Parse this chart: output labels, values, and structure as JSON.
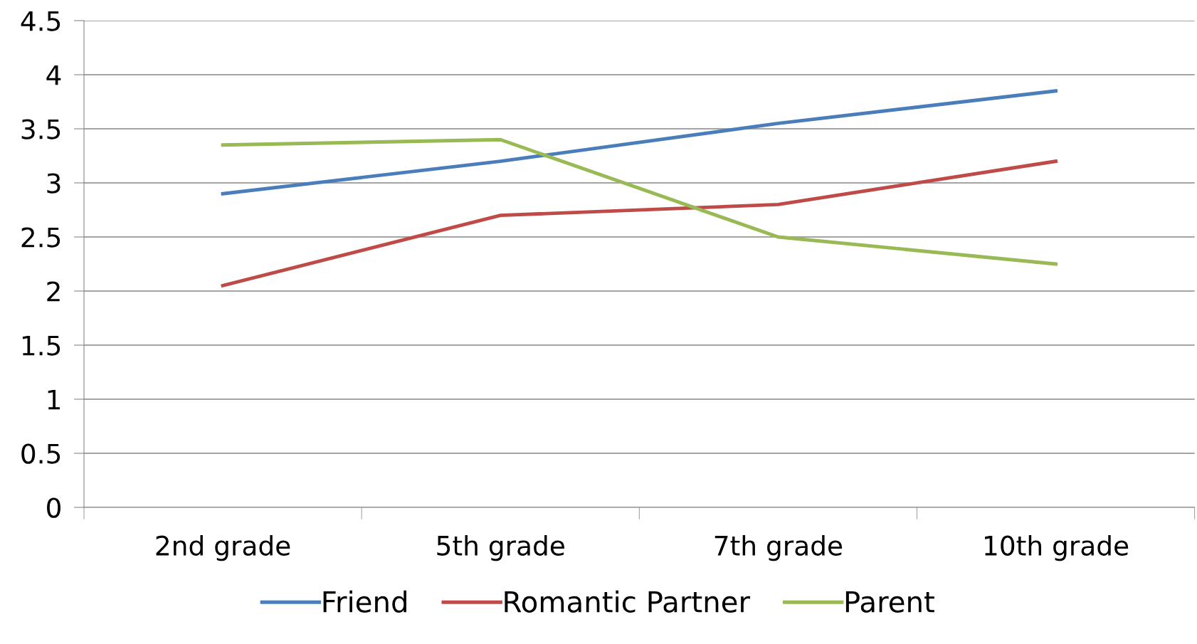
{
  "chart_data": {
    "type": "line",
    "categories": [
      "2nd grade",
      "5th grade",
      "7th grade",
      "10th grade"
    ],
    "series": [
      {
        "name": "Friend",
        "color": "#4a7ebb",
        "values": [
          2.9,
          3.2,
          3.55,
          3.85
        ]
      },
      {
        "name": "Romantic Partner",
        "color": "#be4b48",
        "values": [
          2.05,
          2.7,
          2.8,
          3.2
        ]
      },
      {
        "name": "Parent",
        "color": "#98b954",
        "values": [
          3.35,
          3.4,
          2.5,
          2.25
        ]
      }
    ],
    "ylim": [
      0,
      4.5
    ],
    "yticks": [
      0,
      0.5,
      1,
      1.5,
      2,
      2.5,
      3,
      3.5,
      4,
      4.5
    ],
    "grid": "y",
    "legend": "bottom",
    "marker": "none",
    "line_style": "solid"
  }
}
